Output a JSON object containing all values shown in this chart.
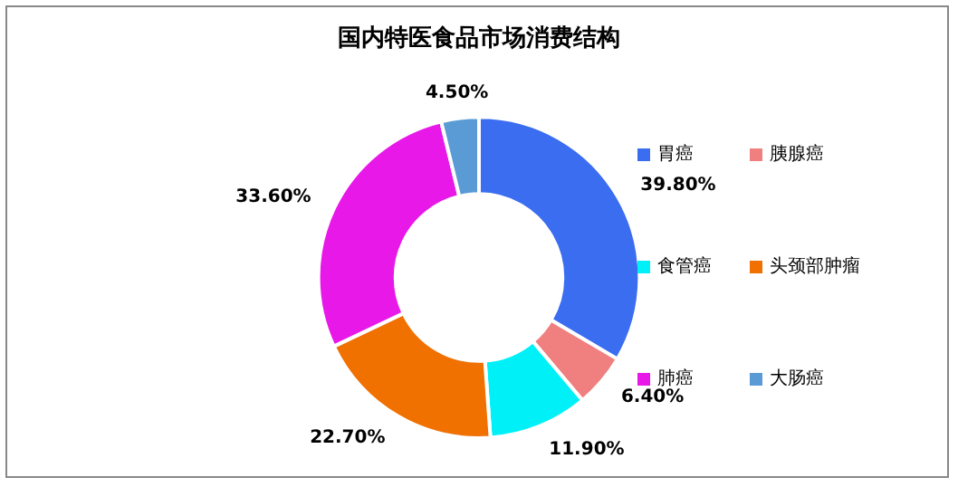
{
  "chart_data": {
    "type": "donut",
    "title": "国内特医食品市场消费结构",
    "categories": [
      "胃癌",
      "胰腺癌",
      "食管癌",
      "头颈部肿瘤",
      "肺癌",
      "大肠癌"
    ],
    "values": [
      39.8,
      6.4,
      11.9,
      22.7,
      33.6,
      4.5
    ],
    "colors": [
      "#3a6df0",
      "#f08080",
      "#00f0f8",
      "#f07000",
      "#e818e8",
      "#5b9bd5"
    ],
    "value_labels": [
      "39.80%",
      "6.40%",
      "11.90%",
      "22.70%",
      "33.60%",
      "4.50%"
    ],
    "legend": "right"
  }
}
